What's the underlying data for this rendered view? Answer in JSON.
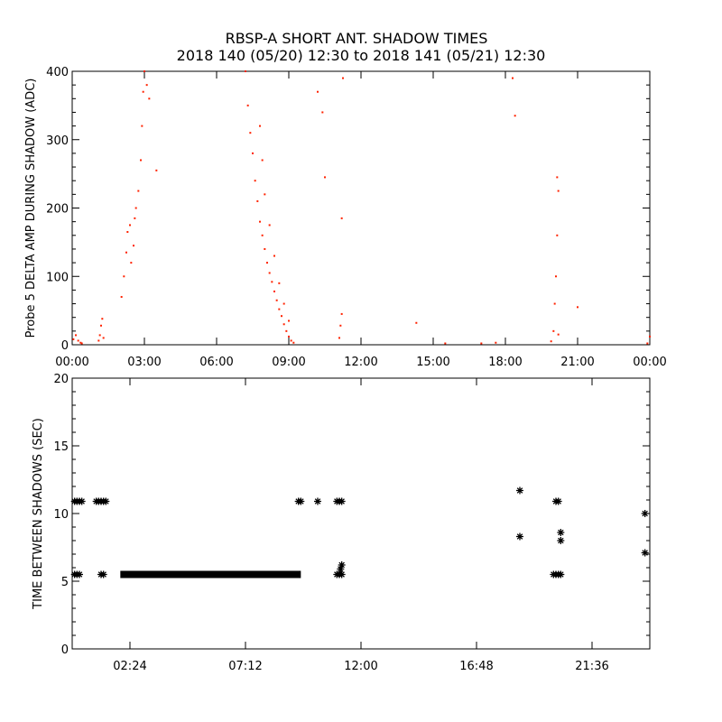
{
  "figure": {
    "title_line1": "RBSP-A SHORT ANT. SHADOW TIMES",
    "title_line2": "2018 140 (05/20) 12:30 to 2018 141 (05/21) 12:30"
  },
  "chart_data": [
    {
      "type": "scatter",
      "ylabel": "Probe 5 DELTA AMP DURING SHADOW (ADC)",
      "xlabel": "",
      "x_unit": "hours",
      "xlim": [
        0,
        24
      ],
      "ylim": [
        0,
        400
      ],
      "x_tick_values": [
        0,
        3,
        6,
        9,
        12,
        15,
        18,
        21,
        24
      ],
      "x_tick_labels": [
        "00:00",
        "03:00",
        "06:00",
        "09:00",
        "12:00",
        "15:00",
        "18:00",
        "21:00",
        "00:00"
      ],
      "y_ticks": [
        0,
        100,
        200,
        300,
        400
      ],
      "marker": "dot",
      "color": "#ff2200",
      "series": [
        {
          "values": [
            [
              0.05,
              8
            ],
            [
              0.15,
              14
            ],
            [
              0.25,
              6
            ],
            [
              0.35,
              3
            ],
            [
              0.4,
              2
            ],
            [
              1.1,
              6
            ],
            [
              1.15,
              14
            ],
            [
              1.2,
              28
            ],
            [
              1.25,
              38
            ],
            [
              1.3,
              10
            ],
            [
              2.05,
              70
            ],
            [
              2.15,
              100
            ],
            [
              2.25,
              135
            ],
            [
              2.3,
              165
            ],
            [
              2.4,
              175
            ],
            [
              2.45,
              120
            ],
            [
              2.55,
              145
            ],
            [
              2.6,
              185
            ],
            [
              2.65,
              200
            ],
            [
              2.75,
              225
            ],
            [
              2.85,
              270
            ],
            [
              2.9,
              320
            ],
            [
              2.95,
              370
            ],
            [
              3.0,
              400
            ],
            [
              3.1,
              380
            ],
            [
              3.2,
              360
            ],
            [
              3.5,
              255
            ],
            [
              7.2,
              400
            ],
            [
              7.3,
              350
            ],
            [
              7.4,
              310
            ],
            [
              7.5,
              280
            ],
            [
              7.6,
              240
            ],
            [
              7.7,
              210
            ],
            [
              7.8,
              180
            ],
            [
              7.9,
              160
            ],
            [
              8.0,
              140
            ],
            [
              8.1,
              120
            ],
            [
              8.2,
              105
            ],
            [
              8.3,
              92
            ],
            [
              8.4,
              78
            ],
            [
              8.5,
              65
            ],
            [
              8.6,
              52
            ],
            [
              8.7,
              42
            ],
            [
              8.8,
              30
            ],
            [
              8.9,
              20
            ],
            [
              9.0,
              12
            ],
            [
              9.1,
              6
            ],
            [
              9.2,
              3
            ],
            [
              7.8,
              320
            ],
            [
              7.9,
              270
            ],
            [
              8.0,
              220
            ],
            [
              8.2,
              175
            ],
            [
              8.4,
              130
            ],
            [
              8.6,
              90
            ],
            [
              8.8,
              60
            ],
            [
              9.0,
              35
            ],
            [
              10.2,
              370
            ],
            [
              10.4,
              340
            ],
            [
              10.5,
              245
            ],
            [
              11.1,
              10
            ],
            [
              11.15,
              28
            ],
            [
              11.2,
              45
            ],
            [
              11.2,
              185
            ],
            [
              11.25,
              390
            ],
            [
              14.3,
              32
            ],
            [
              15.5,
              2
            ],
            [
              17.0,
              2
            ],
            [
              17.6,
              3
            ],
            [
              18.3,
              390
            ],
            [
              18.4,
              335
            ],
            [
              19.9,
              5
            ],
            [
              20.0,
              20
            ],
            [
              20.05,
              60
            ],
            [
              20.1,
              100
            ],
            [
              20.15,
              160
            ],
            [
              20.2,
              225
            ],
            [
              20.15,
              245
            ],
            [
              20.2,
              15
            ],
            [
              21.0,
              55
            ],
            [
              23.9,
              2
            ],
            [
              24.0,
              12
            ]
          ]
        }
      ]
    },
    {
      "type": "scatter",
      "ylabel": "TIME BETWEEN SHADOWS (SEC)",
      "xlabel": "",
      "x_unit": "hours",
      "xlim": [
        0,
        24
      ],
      "ylim": [
        0,
        20
      ],
      "x_tick_values": [
        2.4,
        7.2,
        12,
        16.8,
        21.6
      ],
      "x_tick_labels": [
        "02:24",
        "07:12",
        "12:00",
        "16:48",
        "21:36"
      ],
      "y_ticks": [
        0,
        5,
        10,
        15,
        20
      ],
      "marker": "asterisk",
      "color": "#000000",
      "series": [
        {
          "values": [
            [
              0.1,
              10.9
            ],
            [
              0.2,
              10.9
            ],
            [
              0.3,
              10.9
            ],
            [
              0.4,
              10.9
            ],
            [
              0.1,
              5.5
            ],
            [
              0.2,
              5.5
            ],
            [
              0.3,
              5.5
            ],
            [
              1.0,
              10.9
            ],
            [
              1.1,
              10.9
            ],
            [
              1.2,
              10.9
            ],
            [
              1.3,
              10.9
            ],
            [
              1.4,
              10.9
            ],
            [
              1.2,
              5.5
            ],
            [
              1.3,
              5.5
            ],
            [
              9.4,
              10.9
            ],
            [
              9.5,
              10.9
            ],
            [
              10.2,
              10.9
            ],
            [
              11.0,
              10.9
            ],
            [
              11.1,
              10.9
            ],
            [
              11.2,
              10.9
            ],
            [
              11.0,
              5.5
            ],
            [
              11.1,
              5.5
            ],
            [
              11.2,
              5.5
            ],
            [
              11.15,
              5.9
            ],
            [
              11.2,
              6.2
            ],
            [
              18.6,
              11.7
            ],
            [
              18.6,
              8.3
            ],
            [
              20.1,
              10.9
            ],
            [
              20.2,
              10.9
            ],
            [
              20.0,
              5.5
            ],
            [
              20.1,
              5.5
            ],
            [
              20.2,
              5.5
            ],
            [
              20.3,
              5.5
            ],
            [
              20.3,
              8.6
            ],
            [
              20.3,
              8.0
            ],
            [
              23.8,
              10.0
            ],
            [
              23.8,
              7.1
            ]
          ],
          "band": {
            "x_start": 2.0,
            "x_end": 9.5,
            "y": 5.5
          }
        }
      ]
    }
  ]
}
